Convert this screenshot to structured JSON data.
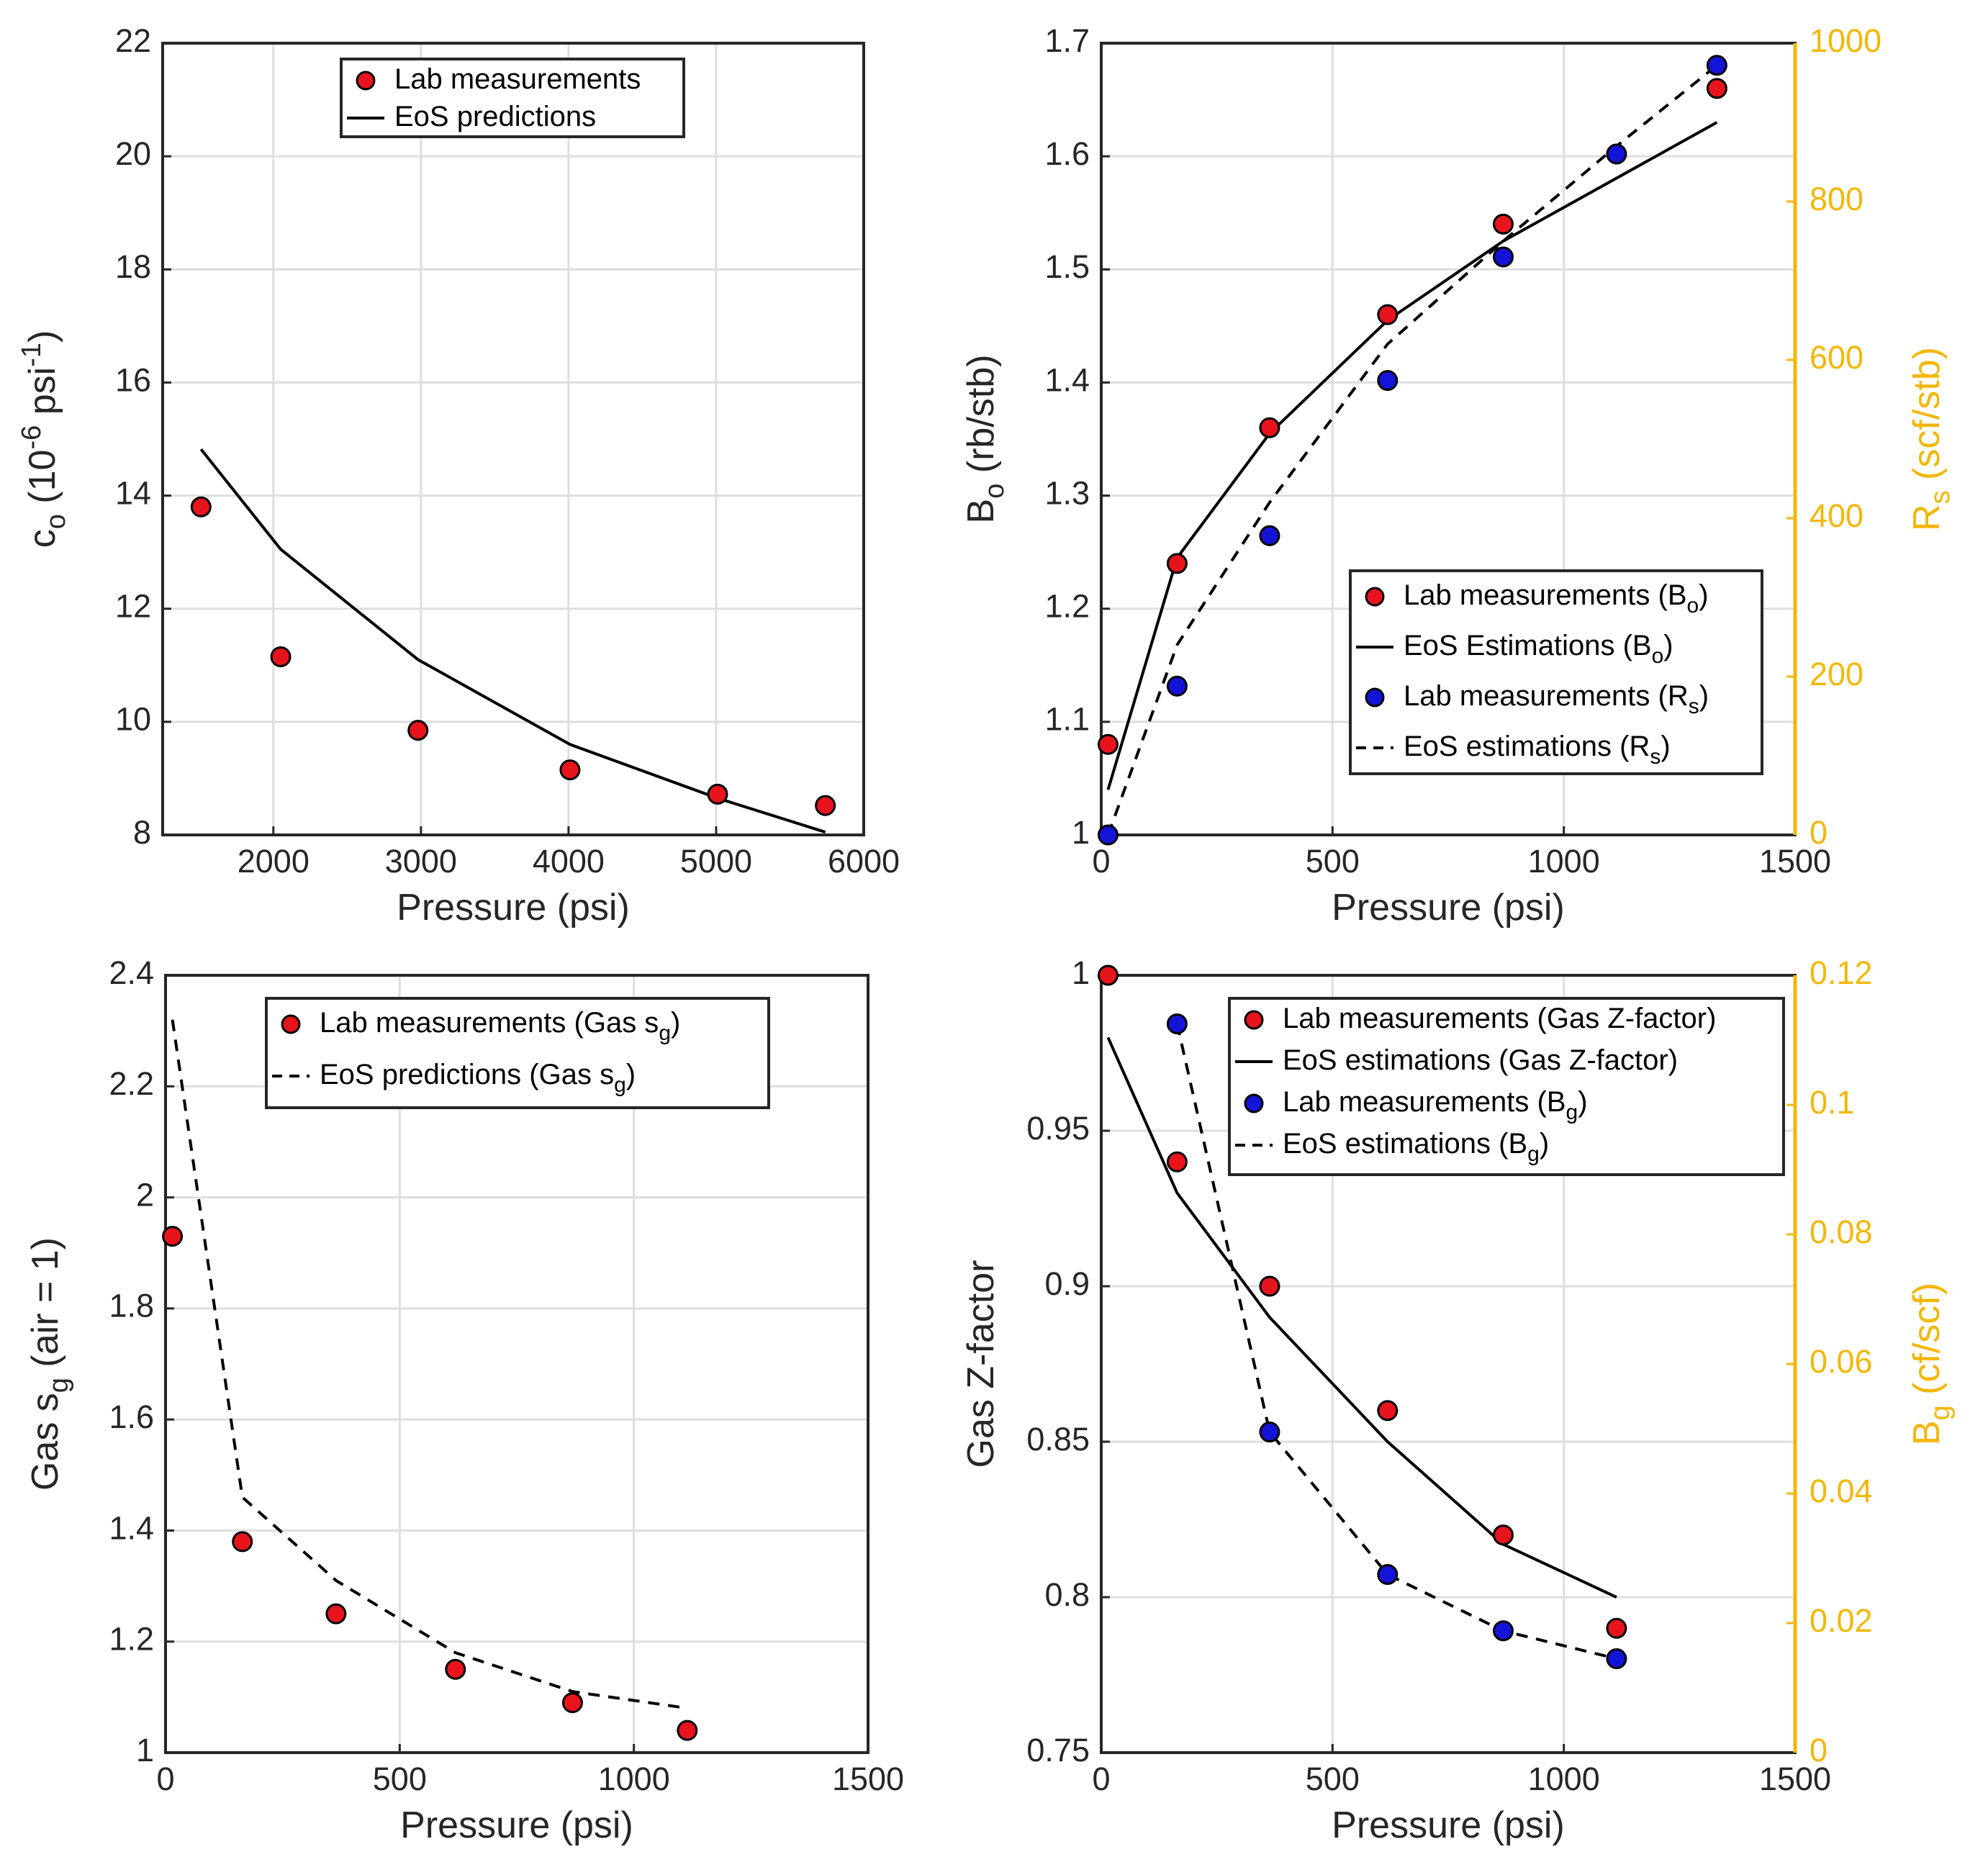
{
  "colors": {
    "lab_primary": "#e8141c",
    "lab_secondary": "#1414d8",
    "right_axis": "#f2b705",
    "line": "#000000"
  },
  "chart_data": [
    {
      "type": "scatter",
      "xlabel": "Pressure (psi)",
      "ylabel": {
        "main": "c",
        "sub": "o",
        "rest": " (10",
        "sup": "-6",
        "tail": " psi",
        "sup2": "-1",
        "end": ")"
      },
      "xlim": [
        1250,
        6000
      ],
      "ylim": [
        8,
        22
      ],
      "xticks": [
        "2000",
        "3000",
        "4000",
        "5000",
        "6000"
      ],
      "yticks": [
        "8",
        "10",
        "12",
        "14",
        "16",
        "18",
        "20",
        "22"
      ],
      "grid": true,
      "legend_position": "top-center",
      "series": [
        {
          "name": "Lab measurements",
          "style": "marker",
          "color": "red",
          "x": [
            1510,
            2050,
            2980,
            4010,
            5010,
            5740
          ],
          "y": [
            13.8,
            11.15,
            9.85,
            9.15,
            8.72,
            8.52
          ]
        },
        {
          "name": "EoS predictions",
          "style": "solid",
          "x": [
            1510,
            2050,
            2980,
            4010,
            5010,
            5740
          ],
          "y": [
            14.82,
            13.05,
            11.1,
            9.6,
            8.65,
            8.05
          ]
        }
      ]
    },
    {
      "type": "scatter",
      "xlabel": "Pressure (psi)",
      "ylabel": {
        "main": "B",
        "sub": "o",
        "rest": " (rb/stb)"
      },
      "ylabel_right": {
        "main": "R",
        "sub": "s",
        "rest": " (scf/stb)"
      },
      "xlim": [
        0,
        1500
      ],
      "ylim": [
        1,
        1.7
      ],
      "ylim_right": [
        0,
        1000
      ],
      "xticks": [
        "0",
        "500",
        "1000",
        "1500"
      ],
      "yticks": [
        "1",
        "1.1",
        "1.2",
        "1.3",
        "1.4",
        "1.5",
        "1.6",
        "1.7"
      ],
      "yticks_right": [
        "0",
        "200",
        "400",
        "600",
        "800",
        "1000"
      ],
      "grid": true,
      "legend_position": "lower-right",
      "series": [
        {
          "name": "Lab measurements (B",
          "name_sub": "o",
          "name_end": ")",
          "style": "marker",
          "color": "red",
          "axis": "left",
          "x": [
            14.7,
            164,
            364,
            619,
            869,
            1331
          ],
          "y": [
            1.08,
            1.24,
            1.36,
            1.46,
            1.54,
            1.66
          ]
        },
        {
          "name": "EoS Estimations (B",
          "name_sub": "o",
          "name_end": ")",
          "style": "solid",
          "axis": "left",
          "x": [
            14.7,
            164,
            364,
            619,
            869,
            1331
          ],
          "y": [
            1.04,
            1.245,
            1.355,
            1.455,
            1.525,
            1.63
          ]
        },
        {
          "name": "Lab measurements (R",
          "name_sub": "s",
          "name_end": ")",
          "style": "marker",
          "color": "blue",
          "axis": "right",
          "x": [
            14.7,
            164,
            364,
            619,
            869,
            1114,
            1331
          ],
          "y": [
            0,
            188,
            378,
            574,
            730,
            860,
            972
          ]
        },
        {
          "name": "EoS estimations (R",
          "name_sub": "s",
          "name_end": ")",
          "style": "dashed",
          "axis": "right",
          "x": [
            14.7,
            164,
            364,
            619,
            869,
            1114,
            1331
          ],
          "y": [
            0,
            240,
            420,
            620,
            750,
            870,
            972
          ]
        }
      ]
    },
    {
      "type": "scatter",
      "xlabel": "Pressure (psi)",
      "ylabel": {
        "main": "Gas s",
        "sub": "g",
        "rest": " (air = 1)"
      },
      "xlim": [
        0,
        1500
      ],
      "ylim": [
        1,
        2.4
      ],
      "xticks": [
        "0",
        "500",
        "1000",
        "1500"
      ],
      "yticks": [
        "1",
        "1.2",
        "1.4",
        "1.6",
        "1.8",
        "2",
        "2.2",
        "2.4"
      ],
      "grid": true,
      "legend_position": "top-center",
      "series": [
        {
          "name": "Lab measurements (Gas s",
          "name_sub": "g",
          "name_end": ")",
          "style": "marker",
          "color": "red",
          "x": [
            14.7,
            164,
            364,
            619,
            869,
            1114
          ],
          "y": [
            1.93,
            1.38,
            1.25,
            1.15,
            1.09,
            1.04
          ]
        },
        {
          "name": "EoS predictions (Gas s",
          "name_sub": "g",
          "name_end": ")",
          "style": "dashed",
          "x": [
            14.7,
            164,
            364,
            619,
            869,
            1114
          ],
          "y": [
            2.32,
            1.46,
            1.31,
            1.18,
            1.11,
            1.08
          ]
        }
      ]
    },
    {
      "type": "scatter",
      "xlabel": "Pressure (psi)",
      "ylabel": {
        "main": "Gas Z-factor"
      },
      "ylabel_right": {
        "main": "B",
        "sub": "g",
        "rest": " (cf/scf)"
      },
      "xlim": [
        0,
        1500
      ],
      "ylim": [
        0.75,
        1
      ],
      "ylim_right": [
        0,
        0.12
      ],
      "xticks": [
        "0",
        "500",
        "1000",
        "1500"
      ],
      "yticks": [
        "0.75",
        "0.8",
        "0.85",
        "0.9",
        "0.95",
        "1"
      ],
      "yticks_right": [
        "0",
        "0.02",
        "0.04",
        "0.06",
        "0.08",
        "0.1",
        "0.12"
      ],
      "grid": true,
      "legend_position": "top-right",
      "series": [
        {
          "name": "Lab measurements (Gas Z-factor)",
          "style": "marker",
          "color": "red",
          "axis": "left",
          "x": [
            14.7,
            164,
            364,
            619,
            869,
            1114
          ],
          "y": [
            1.0,
            0.94,
            0.9,
            0.86,
            0.82,
            0.79
          ]
        },
        {
          "name": "EoS estimations (Gas Z-factor)",
          "style": "solid",
          "axis": "left",
          "x": [
            14.7,
            164,
            364,
            619,
            869,
            1114
          ],
          "y": [
            0.98,
            0.93,
            0.89,
            0.85,
            0.817,
            0.8
          ]
        },
        {
          "name": "Lab measurements (B",
          "name_sub": "g",
          "name_end": ")",
          "style": "marker",
          "color": "blue",
          "axis": "right",
          "x": [
            164,
            364,
            619,
            869,
            1114
          ],
          "y": [
            0.1125,
            0.0495,
            0.0275,
            0.0188,
            0.0145
          ]
        },
        {
          "name": "EoS estimations (B",
          "name_sub": "g",
          "name_end": ")",
          "style": "dashed",
          "axis": "right",
          "x": [
            164,
            364,
            619,
            869,
            1114
          ],
          "y": [
            0.1125,
            0.0495,
            0.0275,
            0.0188,
            0.0145
          ]
        }
      ]
    }
  ]
}
